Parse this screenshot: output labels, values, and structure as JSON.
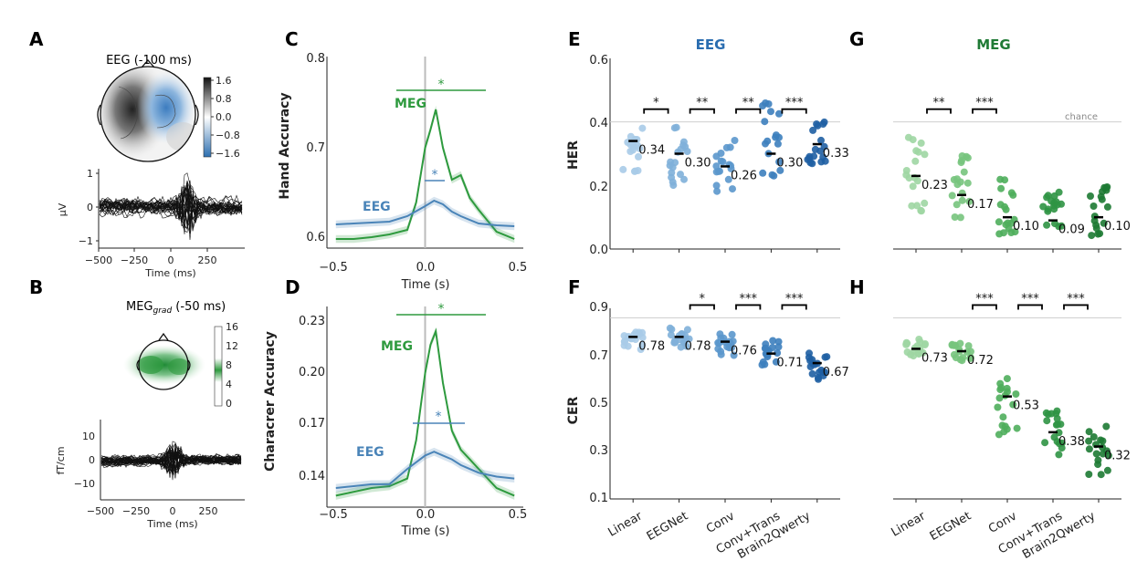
{
  "panels": {
    "A": {
      "label": "A",
      "title": "EEG (-100 ms)",
      "colorbar_ticks": [
        "1.6",
        "0.8",
        "0.0",
        "−0.8",
        "−1.6"
      ],
      "ylabel": "μV",
      "yticks": [
        "1",
        "0",
        "−1"
      ],
      "xticks": [
        "−500",
        "−250",
        "0",
        "250"
      ],
      "xlabel": "Time (ms)"
    },
    "B": {
      "label": "B",
      "title_main": "MEG",
      "title_sub": "grad",
      "title_tail": " (-50 ms)",
      "colorbar_ticks": [
        "16",
        "12",
        "8",
        "4",
        "0"
      ],
      "ylabel": "fT/cm",
      "yticks": [
        "10",
        "0",
        "−10"
      ],
      "xticks": [
        "−500",
        "−250",
        "0",
        "250"
      ],
      "xlabel": "Time (ms)"
    },
    "C": {
      "label": "C",
      "ylabel": "Hand Accuracy",
      "xlabel": "Time (s)",
      "yticks": [
        "0.8",
        "0.7",
        "0.6"
      ],
      "xticks": [
        "−0.5",
        "0.0",
        "0.5"
      ],
      "meg_label": "MEG",
      "eeg_label": "EEG",
      "sig_meg": "*",
      "sig_eeg": "*"
    },
    "D": {
      "label": "D",
      "ylabel": "Characrer Accuracy",
      "xlabel": "Time (s)",
      "yticks": [
        "0.23",
        "0.20",
        "0.17",
        "0.14"
      ],
      "xticks": [
        "−0.5",
        "0.0",
        "0.5"
      ],
      "meg_label": "MEG",
      "eeg_label": "EEG",
      "sig_meg": "*",
      "sig_eeg": "*"
    },
    "E": {
      "label": "E",
      "title": "EEG",
      "ylabel": "HER",
      "yticks": [
        "0.6",
        "0.4",
        "0.2",
        "0.0"
      ]
    },
    "F": {
      "label": "F",
      "ylabel": "CER",
      "yticks": [
        "0.9",
        "0.7",
        "0.5",
        "0.3",
        "0.1"
      ]
    },
    "G": {
      "label": "G",
      "title": "MEG",
      "chance": "chance"
    },
    "H": {
      "label": "H"
    },
    "models": [
      "Linear",
      "EEGNet",
      "Conv",
      "Conv+Trans",
      "Brain2Qwerty"
    ]
  },
  "colors": {
    "eeg": "#4a84b8",
    "meg": "#2e9a3e",
    "eeg_title": "#2a6db0",
    "meg_title": "#1f7a35"
  },
  "chart_data": [
    {
      "type": "line",
      "panel": "C",
      "xlabel": "Time (s)",
      "ylabel": "Hand Accuracy",
      "xlim": [
        -0.55,
        0.55
      ],
      "ylim": [
        0.59,
        0.8
      ],
      "series": [
        {
          "name": "MEG",
          "x": [
            -0.5,
            -0.4,
            -0.3,
            -0.2,
            -0.1,
            -0.05,
            0.0,
            0.03,
            0.06,
            0.1,
            0.15,
            0.2,
            0.25,
            0.3,
            0.35,
            0.4,
            0.5
          ],
          "y": [
            0.6,
            0.6,
            0.602,
            0.605,
            0.61,
            0.64,
            0.7,
            0.72,
            0.742,
            0.7,
            0.665,
            0.67,
            0.645,
            0.632,
            0.62,
            0.608,
            0.6
          ]
        },
        {
          "name": "EEG",
          "x": [
            -0.5,
            -0.4,
            -0.3,
            -0.2,
            -0.1,
            0.0,
            0.05,
            0.1,
            0.15,
            0.2,
            0.3,
            0.4,
            0.5
          ],
          "y": [
            0.616,
            0.617,
            0.618,
            0.619,
            0.625,
            0.636,
            0.642,
            0.638,
            0.63,
            0.625,
            0.617,
            0.615,
            0.614
          ]
        }
      ]
    },
    {
      "type": "line",
      "panel": "D",
      "xlabel": "Time (s)",
      "ylabel": "Characrer Accuracy",
      "xlim": [
        -0.55,
        0.55
      ],
      "ylim": [
        0.13,
        0.235
      ],
      "series": [
        {
          "name": "MEG",
          "x": [
            -0.5,
            -0.4,
            -0.3,
            -0.2,
            -0.1,
            -0.05,
            0.0,
            0.03,
            0.06,
            0.1,
            0.15,
            0.2,
            0.25,
            0.3,
            0.35,
            0.4,
            0.5
          ],
          "y": [
            0.136,
            0.138,
            0.14,
            0.141,
            0.145,
            0.165,
            0.2,
            0.215,
            0.222,
            0.195,
            0.17,
            0.16,
            0.155,
            0.15,
            0.145,
            0.14,
            0.136
          ]
        },
        {
          "name": "EEG",
          "x": [
            -0.5,
            -0.4,
            -0.3,
            -0.2,
            -0.1,
            0.0,
            0.05,
            0.1,
            0.15,
            0.2,
            0.3,
            0.4,
            0.5
          ],
          "y": [
            0.14,
            0.141,
            0.142,
            0.142,
            0.15,
            0.157,
            0.159,
            0.157,
            0.155,
            0.152,
            0.148,
            0.146,
            0.145
          ]
        }
      ]
    },
    {
      "type": "scatter",
      "panel": "E",
      "ylabel": "HER",
      "ylim": [
        0.0,
        0.6
      ],
      "chance": 0.4,
      "categories": [
        "Linear",
        "EEGNet",
        "Conv",
        "Conv+Trans",
        "Brain2Qwerty"
      ],
      "means": [
        0.34,
        0.3,
        0.26,
        0.3,
        0.33
      ],
      "mean_labels": [
        "0.34",
        "0.30",
        "0.26",
        "0.30",
        "0.33"
      ],
      "spread": [
        [
          0.23,
          0.4
        ],
        [
          0.2,
          0.4
        ],
        [
          0.18,
          0.36
        ],
        [
          0.21,
          0.46
        ],
        [
          0.25,
          0.4
        ]
      ],
      "significance": [
        "*",
        "**",
        "**",
        "***"
      ]
    },
    {
      "type": "scatter",
      "panel": "F",
      "ylabel": "CER",
      "ylim": [
        0.1,
        0.9
      ],
      "chance": 0.86,
      "categories": [
        "Linear",
        "EEGNet",
        "Conv",
        "Conv+Trans",
        "Brain2Qwerty"
      ],
      "means": [
        0.78,
        0.78,
        0.76,
        0.71,
        0.67
      ],
      "mean_labels": [
        "0.78",
        "0.78",
        "0.76",
        "0.71",
        "0.67"
      ],
      "spread": [
        [
          0.72,
          0.82
        ],
        [
          0.73,
          0.82
        ],
        [
          0.7,
          0.81
        ],
        [
          0.66,
          0.77
        ],
        [
          0.6,
          0.73
        ]
      ],
      "significance": [
        "",
        "*",
        "***",
        "***"
      ]
    },
    {
      "type": "scatter",
      "panel": "G",
      "ylabel": "HER",
      "ylim": [
        0.0,
        0.6
      ],
      "chance": 0.4,
      "categories": [
        "Linear",
        "EEGNet",
        "Conv",
        "Conv+Trans",
        "Brain2Qwerty"
      ],
      "means": [
        0.23,
        0.17,
        0.1,
        0.09,
        0.1
      ],
      "mean_labels": [
        "0.23",
        "0.17",
        "0.10",
        "0.09",
        "0.10"
      ],
      "spread": [
        [
          0.11,
          0.36
        ],
        [
          0.09,
          0.3
        ],
        [
          0.03,
          0.22
        ],
        [
          0.03,
          0.18
        ],
        [
          0.03,
          0.22
        ]
      ],
      "significance": [
        "**",
        "***",
        "",
        ""
      ]
    },
    {
      "type": "scatter",
      "panel": "H",
      "ylabel": "CER",
      "ylim": [
        0.1,
        0.9
      ],
      "chance": 0.86,
      "categories": [
        "Linear",
        "EEGNet",
        "Conv",
        "Conv+Trans",
        "Brain2Qwerty"
      ],
      "means": [
        0.73,
        0.72,
        0.53,
        0.38,
        0.32
      ],
      "mean_labels": [
        "0.73",
        "0.72",
        "0.53",
        "0.38",
        "0.32"
      ],
      "spread": [
        [
          0.69,
          0.77
        ],
        [
          0.68,
          0.76
        ],
        [
          0.37,
          0.64
        ],
        [
          0.27,
          0.47
        ],
        [
          0.2,
          0.42
        ]
      ],
      "significance": [
        "",
        "***",
        "***",
        "***"
      ]
    }
  ]
}
